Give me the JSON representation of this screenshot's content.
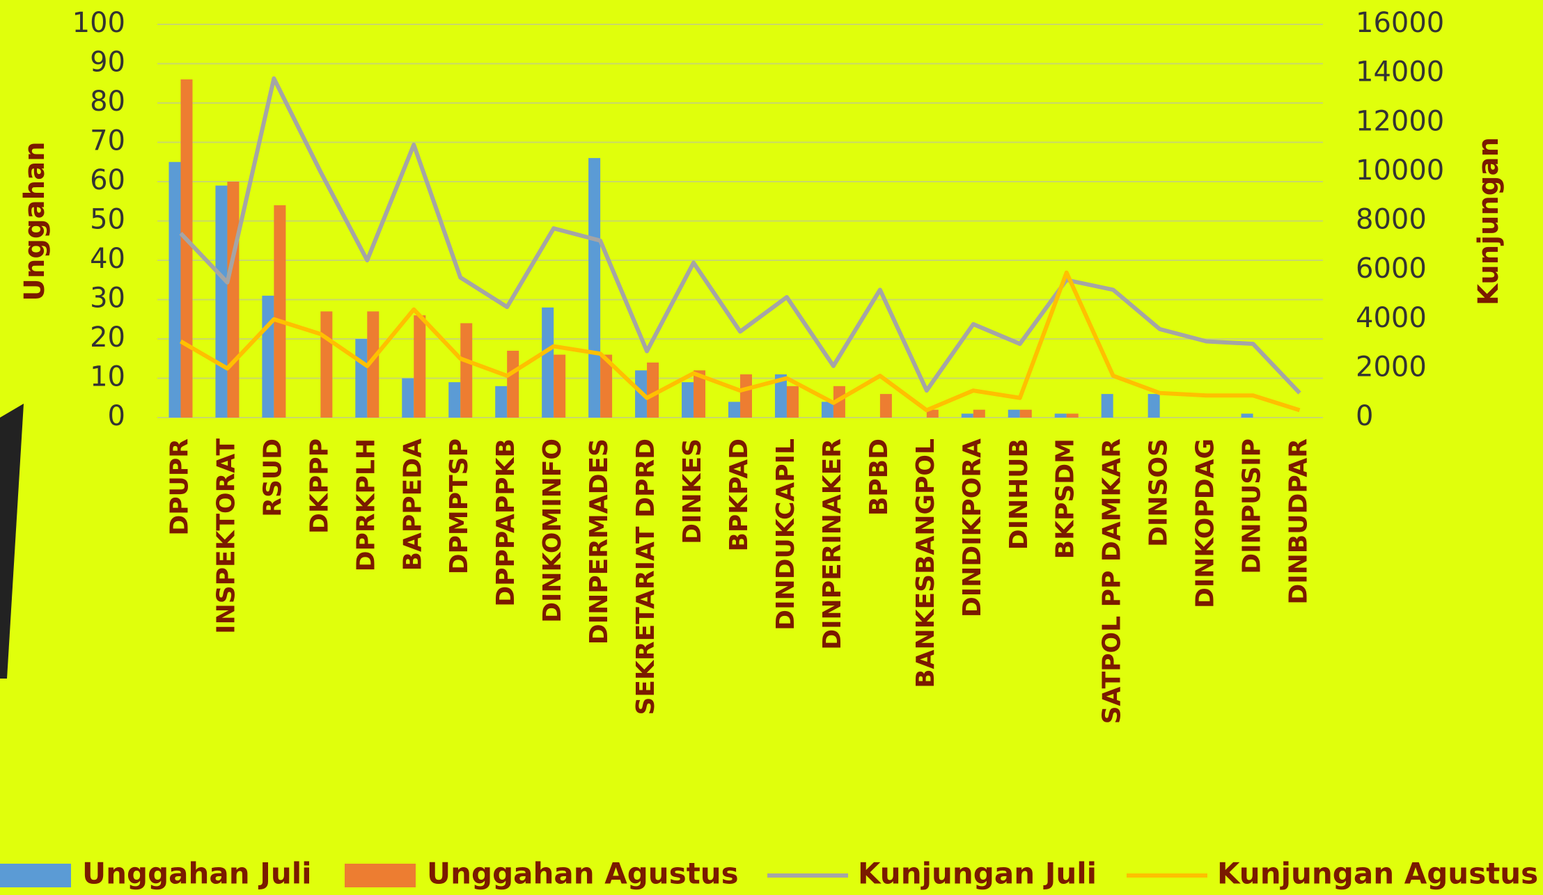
{
  "chart_data": {
    "type": "combo",
    "categories": [
      "DPUPR",
      "INSPEKTORAT",
      "RSUD",
      "DKPPP",
      "DPRKPLH",
      "BAPPEDA",
      "DPMPTSP",
      "DPPPAPPKB",
      "DINKOMINFO",
      "DINPERMADES",
      "SEKRETARIAT DPRD",
      "DINKES",
      "BPKPAD",
      "DINDUKCAPIL",
      "DINPERINAKER",
      "BPBD",
      "BANKESBANGPOL",
      "DINDIKPORA",
      "DINHUB",
      "BKPSDM",
      "SATPOL PP DAMKAR",
      "DINSOS",
      "DINKOPDAG",
      "DINPUSIP",
      "DINBUDPAR"
    ],
    "y_label": "Unggahan",
    "y2_label": "Kunjungan",
    "ylim": [
      0,
      100
    ],
    "yticks": [
      0,
      10,
      20,
      30,
      40,
      50,
      60,
      70,
      80,
      90,
      100
    ],
    "y2lim": [
      0,
      16000
    ],
    "y2ticks": [
      0,
      2000,
      4000,
      6000,
      8000,
      10000,
      12000,
      14000,
      16000
    ],
    "grid": true,
    "series": [
      {
        "name": "Unggahan Juli",
        "type": "bar",
        "color": "#5b9bd5",
        "values": [
          65,
          59,
          31,
          0,
          20,
          10,
          9,
          8,
          28,
          66,
          12,
          9,
          4,
          11,
          4,
          0,
          0,
          1,
          2,
          1,
          6,
          6,
          0,
          1,
          0
        ]
      },
      {
        "name": "Unggahan Agustus",
        "type": "bar",
        "color": "#ed7d31",
        "values": [
          86,
          60,
          54,
          27,
          27,
          26,
          24,
          17,
          16,
          16,
          14,
          12,
          11,
          8,
          8,
          6,
          2,
          2,
          2,
          1,
          0,
          0,
          0,
          0,
          0
        ]
      },
      {
        "name": "Kunjungan Juli",
        "type": "line",
        "axis": "y2",
        "color": "#a5a5a5",
        "values": [
          7500,
          5500,
          13800,
          10000,
          6400,
          11100,
          5700,
          4500,
          7700,
          7200,
          2700,
          6300,
          3500,
          4900,
          2100,
          5200,
          1100,
          3800,
          3000,
          5600,
          5200,
          3600,
          3100,
          3000,
          1000
        ]
      },
      {
        "name": "Kunjungan Agustus",
        "type": "line",
        "axis": "y2",
        "color": "#ffc000",
        "values": [
          3100,
          2000,
          4000,
          3400,
          2100,
          4400,
          2400,
          1700,
          2900,
          2600,
          800,
          1800,
          1100,
          1600,
          600,
          1700,
          300,
          1100,
          800,
          5900,
          1700,
          1000,
          900,
          900,
          300
        ]
      }
    ]
  }
}
